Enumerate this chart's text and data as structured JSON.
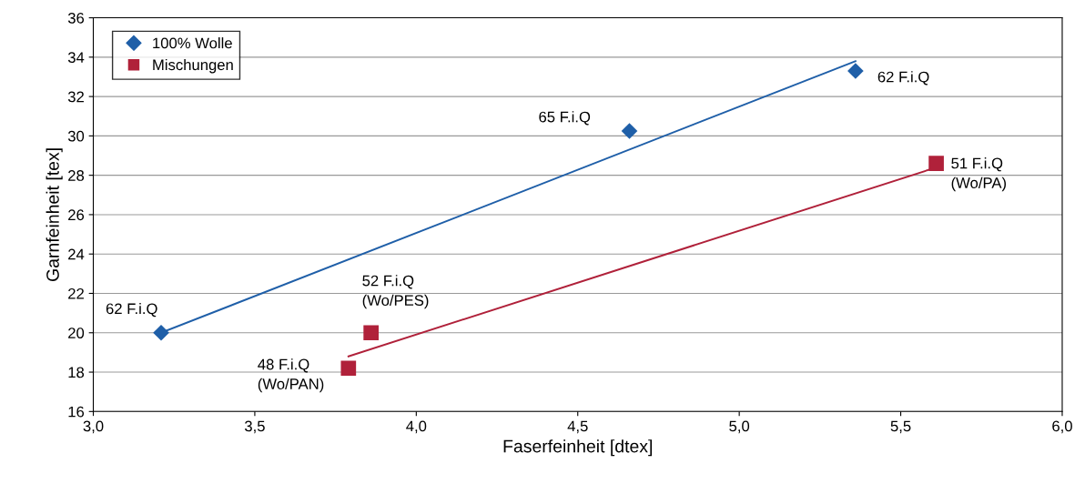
{
  "chart_data": {
    "type": "scatter",
    "xlabel": "Faserfeinheit [dtex]",
    "ylabel": "Garnfeinheit [tex]",
    "xlim": [
      3.0,
      6.0
    ],
    "ylim": [
      16,
      36
    ],
    "xticks": [
      {
        "value": 3.0,
        "label": "3,0"
      },
      {
        "value": 3.5,
        "label": "3,5"
      },
      {
        "value": 4.0,
        "label": "4,0"
      },
      {
        "value": 4.5,
        "label": "4,5"
      },
      {
        "value": 5.0,
        "label": "5,0"
      },
      {
        "value": 5.5,
        "label": "5,5"
      },
      {
        "value": 6.0,
        "label": "6,0"
      }
    ],
    "yticks": [
      16,
      18,
      20,
      22,
      24,
      26,
      28,
      30,
      32,
      34,
      36
    ],
    "grid": "y",
    "legend": "top left",
    "series": [
      {
        "name": "100% Wolle",
        "marker": "diamond",
        "color": "#1f5fa8",
        "x": [
          3.21,
          4.66,
          5.36
        ],
        "values": [
          20.0,
          30.25,
          33.3
        ]
      },
      {
        "name": "Mischungen",
        "marker": "square",
        "color": "#b0213a",
        "x": [
          3.86,
          3.79,
          5.61
        ],
        "values": [
          20.0,
          18.2,
          28.6
        ]
      },
      {
        "type": "line",
        "line_style": "solid",
        "color": "#1f5fa8",
        "x": [
          3.21,
          5.36
        ],
        "values": [
          20.0,
          33.8
        ]
      },
      {
        "type": "line",
        "line_style": "solid",
        "color": "#b0213a",
        "x": [
          3.79,
          5.61
        ],
        "values": [
          18.8,
          28.4
        ]
      }
    ],
    "annotations": [
      {
        "text": "62 F.i.Q",
        "x": 3.21,
        "y": 20.0
      },
      {
        "text": "65 F.i.Q",
        "x": 4.66,
        "y": 30.25
      },
      {
        "text": "62 F.i.Q",
        "x": 5.36,
        "y": 33.3
      },
      {
        "text": "52 F.i.Q\n(Wo/PES)",
        "x": 3.86,
        "y": 20.0
      },
      {
        "text": "48 F.i.Q\n(Wo/PAN)",
        "x": 3.79,
        "y": 18.2
      },
      {
        "text": "51 F.i.Q\n(Wo/PA)",
        "x": 5.61,
        "y": 28.6
      }
    ]
  }
}
